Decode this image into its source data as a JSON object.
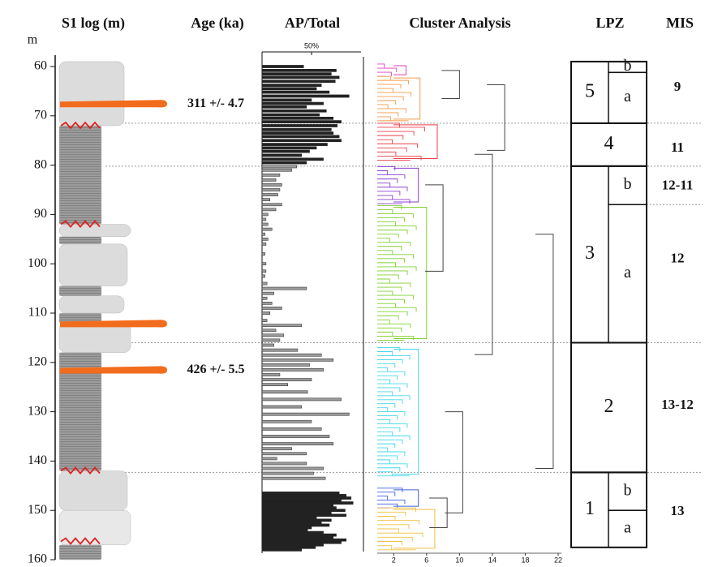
{
  "chart_data": {
    "type": "stratigraphy",
    "y_label": "m",
    "ylim": [
      60,
      160
    ],
    "yticks": [
      60,
      70,
      80,
      90,
      100,
      110,
      120,
      130,
      140,
      150,
      160
    ],
    "boundaries": [
      71.5,
      80.2,
      116,
      142.3
    ],
    "log": {
      "title": "S1 log (m)",
      "units": [
        {
          "top": 59,
          "bottom": 72,
          "color": "#dcdcdc"
        },
        {
          "top": 72,
          "bottom": 92,
          "color": "#9c9c9c"
        },
        {
          "top": 92,
          "bottom": 94.5,
          "color": "#dcdcdc"
        },
        {
          "top": 94.5,
          "bottom": 96,
          "color": "#9c9c9c"
        },
        {
          "top": 96,
          "bottom": 104.5,
          "color": "#dcdcdc"
        },
        {
          "top": 104.5,
          "bottom": 106.5,
          "color": "#9c9c9c"
        },
        {
          "top": 106.5,
          "bottom": 110,
          "color": "#dcdcdc"
        },
        {
          "top": 110,
          "bottom": 112,
          "color": "#9c9c9c"
        },
        {
          "top": 112,
          "bottom": 118,
          "color": "#dcdcdc"
        },
        {
          "top": 118,
          "bottom": 142,
          "color": "#9c9c9c"
        },
        {
          "top": 142,
          "bottom": 150,
          "color": "#dcdcdc"
        },
        {
          "top": 150,
          "bottom": 157,
          "color": "#e8e8e8"
        },
        {
          "top": 157,
          "bottom": 160,
          "color": "#9c9c9c"
        }
      ],
      "tephra": {
        "color": "#f26c1d",
        "depths": [
          67.6,
          112.2,
          121.6
        ]
      },
      "hiatus": {
        "color": "#e02020",
        "depths": [
          72,
          92,
          142,
          156.3
        ]
      }
    },
    "ages": {
      "title": "Age (ka)",
      "items": [
        {
          "label": "311 +/- 4.7",
          "depth": 67.6
        },
        {
          "label": "426 +/- 5.5",
          "depth": 121.6
        }
      ]
    },
    "pollen": {
      "title": "AP/Total",
      "xlim": [
        0,
        100
      ],
      "xticks": [
        {
          "value": 50,
          "label": "50%"
        }
      ],
      "series": [
        {
          "color": "#222222",
          "depths": [
            60,
            60.8,
            61.5,
            62.2,
            63,
            63.8,
            64.5,
            65.2,
            66,
            66.8,
            67.5,
            68.2,
            69,
            69.8,
            70.5,
            71.2,
            72,
            72.8,
            73.5,
            74.2,
            75,
            75.8,
            76.5,
            77.2,
            78,
            78.8,
            79.5
          ],
          "values": [
            42,
            75,
            70,
            78,
            74,
            60,
            55,
            68,
            88,
            50,
            62,
            45,
            65,
            58,
            72,
            80,
            76,
            70,
            72,
            78,
            80,
            66,
            55,
            48,
            40,
            62,
            45
          ]
        },
        {
          "color": "#9a9a9a",
          "depths": [
            80.3,
            81,
            82,
            83,
            84,
            85,
            86,
            87,
            88,
            89,
            90,
            91,
            92,
            93,
            94,
            95,
            96,
            98,
            100,
            101.5,
            102.5,
            104,
            105,
            106,
            107,
            108,
            109,
            110,
            111.5,
            112.5,
            113.5,
            114.5,
            115.5,
            116.5,
            117.5,
            118.5,
            119.5,
            120.5,
            121.5,
            122.5,
            123.5,
            124.5,
            126,
            127.5,
            129,
            130.5,
            132,
            133.5,
            135,
            136.5,
            137.5,
            138.5,
            139.5,
            140.5,
            141.5,
            142.5,
            143.5
          ],
          "values": [
            35,
            30,
            18,
            14,
            20,
            18,
            16,
            8,
            20,
            14,
            6,
            4,
            6,
            10,
            3,
            6,
            4,
            3,
            4,
            4,
            3,
            5,
            45,
            12,
            5,
            10,
            20,
            8,
            5,
            40,
            14,
            22,
            18,
            12,
            36,
            60,
            72,
            48,
            62,
            18,
            50,
            26,
            46,
            80,
            40,
            88,
            50,
            60,
            68,
            72,
            30,
            45,
            15,
            45,
            62,
            52,
            64
          ]
        },
        {
          "color": "#222222",
          "depths": [
            146.5,
            147,
            147.5,
            148,
            148.5,
            149,
            149.5,
            150,
            150.5,
            151,
            151.5,
            152,
            152.5,
            153,
            153.5,
            154,
            154.5,
            155,
            155.5,
            156,
            156.5,
            157,
            157.5,
            158
          ],
          "values": [
            78,
            85,
            90,
            80,
            92,
            72,
            75,
            84,
            70,
            85,
            55,
            70,
            60,
            68,
            50,
            46,
            62,
            75,
            72,
            85,
            80,
            62,
            54,
            40
          ]
        }
      ]
    },
    "clusters": {
      "title": "Cluster Analysis",
      "xlim": [
        0,
        22
      ],
      "xticks": [
        2,
        6,
        10,
        14,
        18,
        22
      ],
      "groups": [
        {
          "color": "#e040c0",
          "top": 59.5,
          "bottom": 62,
          "height": 3.5
        },
        {
          "color": "#f59a4a",
          "top": 62,
          "bottom": 71,
          "height": 5.2
        },
        {
          "color": "#e8404a",
          "top": 71.5,
          "bottom": 79,
          "height": 7.3
        },
        {
          "color": "#8a40d0",
          "top": 80.3,
          "bottom": 87.8,
          "height": 5
        },
        {
          "color": "#80d030",
          "top": 88.2,
          "bottom": 115.5,
          "height": 6
        },
        {
          "color": "#40d8e8",
          "top": 117,
          "bottom": 143,
          "height": 5
        },
        {
          "color": "#4060e0",
          "top": 145.5,
          "bottom": 149.5,
          "height": 5
        },
        {
          "color": "#f0c040",
          "top": 149.5,
          "bottom": 158,
          "height": 7
        }
      ],
      "joins": [
        {
          "top": 60.8,
          "bottom": 66.5,
          "height": 10
        },
        {
          "top": 63.7,
          "bottom": 77,
          "height": 15.5
        },
        {
          "top": 84,
          "bottom": 101.5,
          "height": 8
        },
        {
          "top": 147.5,
          "bottom": 153.5,
          "height": 8.5
        },
        {
          "top": 130,
          "bottom": 150.5,
          "height": 10.4
        },
        {
          "top": 94,
          "bottom": 141.5,
          "height": 21.4
        },
        {
          "top": 77.8,
          "bottom": 118.4,
          "height": 14
        }
      ]
    },
    "lpz": {
      "title": "LPZ",
      "zones": [
        {
          "label": "5",
          "top": 59,
          "bottom": 71.5,
          "subzones": [
            {
              "label": "b",
              "top": 59,
              "bottom": 61.2
            },
            {
              "label": "a",
              "top": 61.2,
              "bottom": 71.5
            }
          ]
        },
        {
          "label": "4",
          "top": 71.5,
          "bottom": 80.2
        },
        {
          "label": "3",
          "top": 80.2,
          "bottom": 116,
          "subzones": [
            {
              "label": "b",
              "top": 80.2,
              "bottom": 88
            },
            {
              "label": "a",
              "top": 88,
              "bottom": 116
            }
          ]
        },
        {
          "label": "2",
          "top": 116,
          "bottom": 142.3
        },
        {
          "label": "1",
          "top": 142.3,
          "bottom": 157.5,
          "subzones": [
            {
              "label": "b",
              "top": 142.3,
              "bottom": 150
            },
            {
              "label": "a",
              "top": 150,
              "bottom": 157.5
            }
          ]
        }
      ]
    },
    "mis": {
      "title": "MIS",
      "boundaries": [
        88
      ],
      "items": [
        {
          "label": "9",
          "depth": 64.3
        },
        {
          "label": "11",
          "depth": 76.6
        },
        {
          "label": "12-11",
          "depth": 84.3
        },
        {
          "label": "12",
          "depth": 99.1
        },
        {
          "label": "13-12",
          "depth": 128.8
        },
        {
          "label": "13",
          "depth": 150.3
        }
      ]
    }
  }
}
